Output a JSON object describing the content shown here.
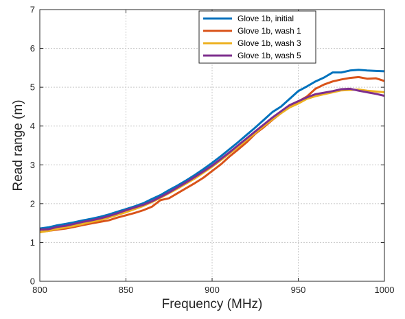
{
  "chart_data": {
    "type": "line",
    "xlabel": "Frequency (MHz)",
    "ylabel": "Read range (m)",
    "xlim": [
      800,
      1000
    ],
    "ylim": [
      0,
      7
    ],
    "x_ticks": [
      800,
      850,
      900,
      950,
      1000
    ],
    "y_ticks": [
      0,
      1,
      2,
      3,
      4,
      5,
      6,
      7
    ],
    "grid": true,
    "legend_position": "top-right",
    "series": [
      {
        "name": "Glove 1b, initial",
        "color": "#0072BD",
        "x": [
          800,
          805,
          810,
          815,
          820,
          825,
          830,
          835,
          840,
          845,
          850,
          855,
          860,
          865,
          870,
          875,
          880,
          885,
          890,
          895,
          900,
          905,
          910,
          915,
          920,
          925,
          930,
          935,
          940,
          945,
          950,
          955,
          960,
          965,
          970,
          975,
          980,
          985,
          990,
          995,
          1000
        ],
        "values": [
          1.36,
          1.39,
          1.44,
          1.48,
          1.52,
          1.57,
          1.61,
          1.66,
          1.72,
          1.79,
          1.86,
          1.93,
          2.01,
          2.12,
          2.22,
          2.35,
          2.47,
          2.6,
          2.74,
          2.89,
          3.05,
          3.22,
          3.4,
          3.58,
          3.77,
          3.96,
          4.16,
          4.36,
          4.5,
          4.7,
          4.9,
          5.02,
          5.15,
          5.25,
          5.38,
          5.38,
          5.43,
          5.45,
          5.43,
          5.42,
          5.41
        ]
      },
      {
        "name": "Glove 1b, wash 1",
        "color": "#D95319",
        "x": [
          800,
          805,
          810,
          815,
          820,
          825,
          830,
          835,
          840,
          845,
          850,
          855,
          860,
          865,
          870,
          875,
          880,
          885,
          890,
          895,
          900,
          905,
          910,
          915,
          920,
          925,
          930,
          935,
          940,
          945,
          950,
          955,
          960,
          965,
          970,
          975,
          980,
          985,
          990,
          995,
          1000
        ],
        "values": [
          1.27,
          1.3,
          1.33,
          1.36,
          1.4,
          1.45,
          1.49,
          1.53,
          1.57,
          1.64,
          1.7,
          1.76,
          1.83,
          1.92,
          2.09,
          2.14,
          2.27,
          2.4,
          2.53,
          2.67,
          2.84,
          3.01,
          3.21,
          3.39,
          3.58,
          3.8,
          3.97,
          4.16,
          4.33,
          4.5,
          4.63,
          4.76,
          4.96,
          5.07,
          5.15,
          5.2,
          5.24,
          5.26,
          5.22,
          5.23,
          5.16
        ]
      },
      {
        "name": "Glove 1b, wash 3",
        "color": "#EDB120",
        "x": [
          800,
          805,
          810,
          815,
          820,
          825,
          830,
          835,
          840,
          845,
          850,
          855,
          860,
          865,
          870,
          875,
          880,
          885,
          890,
          895,
          900,
          905,
          910,
          915,
          920,
          925,
          930,
          935,
          940,
          945,
          950,
          955,
          960,
          965,
          970,
          975,
          980,
          985,
          990,
          995,
          1000
        ],
        "values": [
          1.26,
          1.3,
          1.35,
          1.39,
          1.43,
          1.48,
          1.53,
          1.58,
          1.64,
          1.71,
          1.78,
          1.86,
          1.94,
          2.04,
          2.15,
          2.27,
          2.39,
          2.52,
          2.65,
          2.8,
          2.95,
          3.12,
          3.29,
          3.46,
          3.64,
          3.82,
          4.0,
          4.17,
          4.33,
          4.48,
          4.58,
          4.7,
          4.77,
          4.82,
          4.87,
          4.92,
          4.93,
          4.94,
          4.91,
          4.89,
          4.87
        ]
      },
      {
        "name": "Glove 1b, wash 5",
        "color": "#7E2F8E",
        "x": [
          800,
          805,
          810,
          815,
          820,
          825,
          830,
          835,
          840,
          845,
          850,
          855,
          860,
          865,
          870,
          875,
          880,
          885,
          890,
          895,
          900,
          905,
          910,
          915,
          920,
          925,
          930,
          935,
          940,
          945,
          950,
          955,
          960,
          965,
          970,
          975,
          980,
          985,
          990,
          995,
          1000
        ],
        "values": [
          1.33,
          1.34,
          1.4,
          1.43,
          1.48,
          1.53,
          1.57,
          1.62,
          1.68,
          1.75,
          1.83,
          1.9,
          1.97,
          2.06,
          2.17,
          2.29,
          2.42,
          2.55,
          2.69,
          2.83,
          2.98,
          3.15,
          3.32,
          3.5,
          3.68,
          3.86,
          4.04,
          4.22,
          4.38,
          4.54,
          4.64,
          4.74,
          4.82,
          4.86,
          4.9,
          4.95,
          4.96,
          4.91,
          4.87,
          4.83,
          4.78
        ]
      }
    ]
  }
}
